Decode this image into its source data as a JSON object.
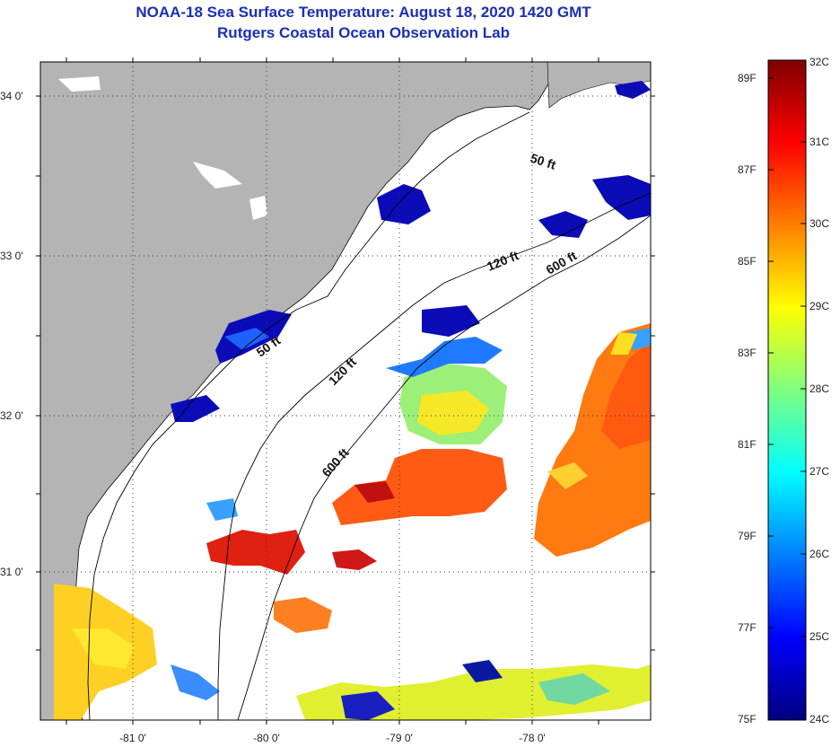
{
  "header": {
    "title": "NOAA-18 Sea Surface Temperature:  August 18, 2020 1420 GMT",
    "subtitle": "Rutgers Coastal Ocean Observation Lab"
  },
  "map": {
    "lat_labels": [
      "34 0'",
      "33 0'",
      "32 0'",
      "31 0'"
    ],
    "lon_labels": [
      "-81 0'",
      "-80 0'",
      "-79 0'",
      "-78 0'"
    ],
    "isobath_labels": [
      "50 ft",
      "120 ft",
      "600 ft",
      "50 ft",
      "120 ft",
      "600 ft"
    ],
    "colors": {
      "land": "#b4b4b4",
      "ocean": "#ffffff",
      "cloud": "#ffffff",
      "grid": "#333333"
    }
  },
  "colorbar": {
    "fahrenheit": [
      "89F",
      "87F",
      "85F",
      "83F",
      "81F",
      "79F",
      "77F",
      "75F"
    ],
    "celsius": [
      "32C",
      "31C",
      "30C",
      "29C",
      "28C",
      "27C",
      "26C",
      "25C",
      "24C"
    ],
    "colormap": "jet"
  }
}
